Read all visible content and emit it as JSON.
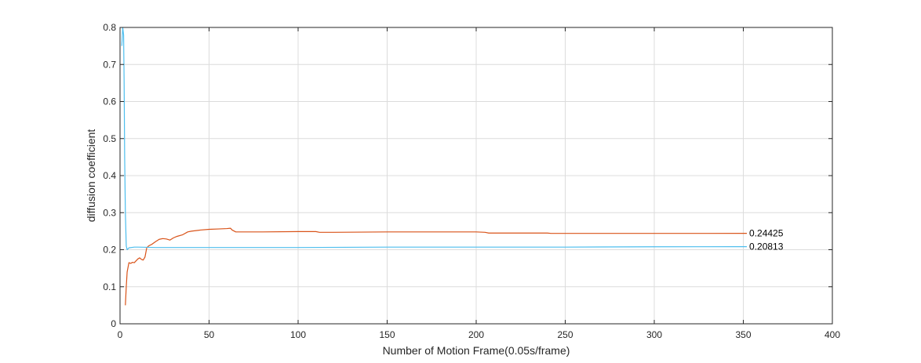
{
  "chart_data": {
    "type": "line",
    "xlabel": "Number of Motion Frame(0.05s/frame)",
    "ylabel": "diffusion coefficient",
    "xlim": [
      0,
      400
    ],
    "ylim": [
      0,
      0.8
    ],
    "xticks": [
      0,
      50,
      100,
      150,
      200,
      250,
      300,
      350,
      400
    ],
    "yticks": [
      0,
      0.1,
      0.2,
      0.3,
      0.4,
      0.5,
      0.6,
      0.7,
      0.8
    ],
    "grid": true,
    "colors": {
      "series_orange": "#d95319",
      "series_cyan": "#4dbeee",
      "grid": "#dcdcdc",
      "axis": "#262626"
    },
    "series": [
      {
        "color": "#d95319",
        "end_label": "0.24425",
        "x": [
          3,
          3.5,
          4,
          5,
          6,
          7,
          8,
          9,
          10,
          11,
          12,
          13,
          14,
          15,
          16,
          18,
          20,
          22,
          24,
          26,
          28,
          30,
          32,
          35,
          38,
          40,
          45,
          50,
          55,
          60,
          62,
          63,
          65,
          70,
          80,
          100,
          110,
          112,
          120,
          150,
          180,
          200,
          205,
          207,
          220,
          240,
          242,
          260,
          300,
          330,
          352
        ],
        "y": [
          0.05,
          0.1,
          0.14,
          0.165,
          0.163,
          0.166,
          0.165,
          0.17,
          0.175,
          0.178,
          0.174,
          0.172,
          0.18,
          0.205,
          0.21,
          0.215,
          0.222,
          0.228,
          0.23,
          0.229,
          0.226,
          0.232,
          0.236,
          0.24,
          0.248,
          0.25,
          0.253,
          0.255,
          0.256,
          0.257,
          0.258,
          0.253,
          0.248,
          0.248,
          0.248,
          0.249,
          0.249,
          0.247,
          0.247,
          0.248,
          0.248,
          0.248,
          0.247,
          0.245,
          0.245,
          0.245,
          0.244,
          0.244,
          0.244,
          0.244,
          0.24425
        ]
      },
      {
        "color": "#4dbeee",
        "end_label": "0.20813",
        "x": [
          1,
          1.5,
          2,
          2.3,
          2.6,
          3,
          3.5,
          4,
          5,
          8,
          10,
          20,
          50,
          100,
          150,
          200,
          250,
          300,
          352
        ],
        "y": [
          0.75,
          0.8,
          0.78,
          0.65,
          0.45,
          0.3,
          0.21,
          0.2,
          0.205,
          0.207,
          0.207,
          0.206,
          0.206,
          0.206,
          0.207,
          0.207,
          0.207,
          0.208,
          0.20813
        ]
      }
    ]
  }
}
